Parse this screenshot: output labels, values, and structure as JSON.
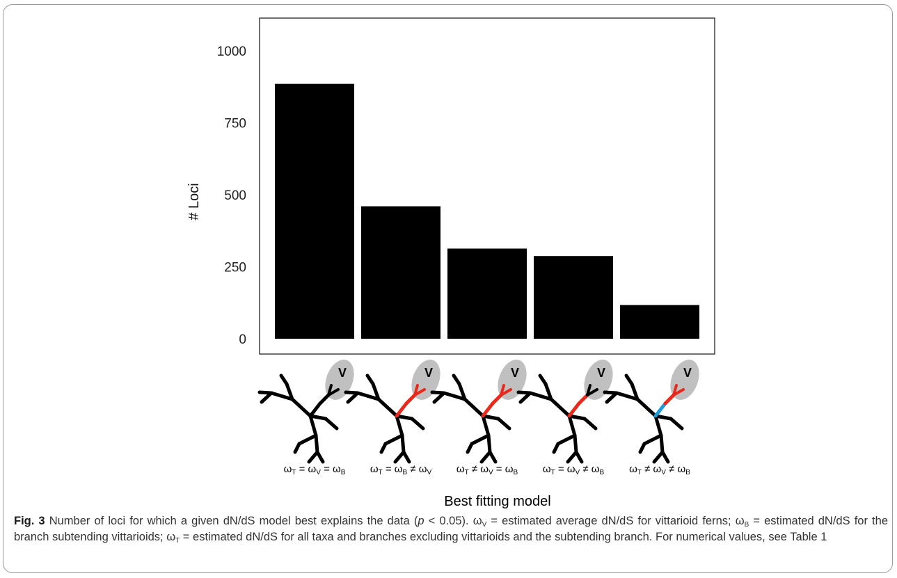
{
  "chart_data": {
    "type": "bar",
    "categories": [
      "ωT = ωV = ωB",
      "ωT = ωB ≠ ωV",
      "ωT ≠ ωV = ωB",
      "ωT = ωV ≠ ωB",
      "ωT ≠ ωV ≠ ωB"
    ],
    "values": [
      885,
      460,
      313,
      287,
      117
    ],
    "ylabel": "# Loci",
    "xlabel": "Best fitting model",
    "ylim": [
      0,
      1000
    ],
    "yticks": [
      0,
      250,
      500,
      750,
      1000
    ],
    "grid": false,
    "bar_color": "#000000",
    "highlight_colors": {
      "clade": "#c0c0c0",
      "vittarioid_branches": "#e8291c",
      "subtending_branch_blue": "#1e9bd7"
    }
  },
  "models": [
    {
      "t": "T",
      "op1": " = ",
      "v": "V",
      "op2": " = ",
      "b": "B",
      "order": "TVB",
      "clade_label": "V",
      "clade_color": false,
      "sub_color": false
    },
    {
      "t": "T",
      "op1": " = ",
      "v": "B",
      "op2": " ≠ ",
      "b": "V",
      "order": "TBV",
      "clade_label": "V",
      "clade_color": true,
      "sub_color": true
    },
    {
      "t": "T",
      "op1": " ≠ ",
      "v": "V",
      "op2": " = ",
      "b": "B",
      "order": "TVB",
      "clade_label": "V",
      "clade_color": true,
      "sub_color": true
    },
    {
      "t": "T",
      "op1": " = ",
      "v": "V",
      "op2": " ≠ ",
      "b": "B",
      "order": "TVB",
      "clade_label": "V",
      "clade_color": false,
      "sub_color": true
    },
    {
      "t": "T",
      "op1": " ≠ ",
      "v": "V",
      "op2": " ≠ ",
      "b": "B",
      "order": "TVB",
      "clade_label": "V",
      "clade_color": true,
      "sub_color": "blue"
    }
  ],
  "caption": {
    "fig_label": "Fig. 3",
    "part1": " Number of loci for which a given dN/dS model best explains the data (",
    "p": "p",
    "part2": " < 0.05). ω",
    "sub_v": "V",
    "part3": " = estimated average dN/dS for vittarioid ferns; ω",
    "sub_b": "B",
    "part4": " = estimated dN/dS for the branch subtending vittarioids; ω",
    "sub_t": "T",
    "part5": " = estimated dN/dS for all taxa and branches excluding vittarioids and the subtending branch. For numerical values, see Table 1"
  }
}
